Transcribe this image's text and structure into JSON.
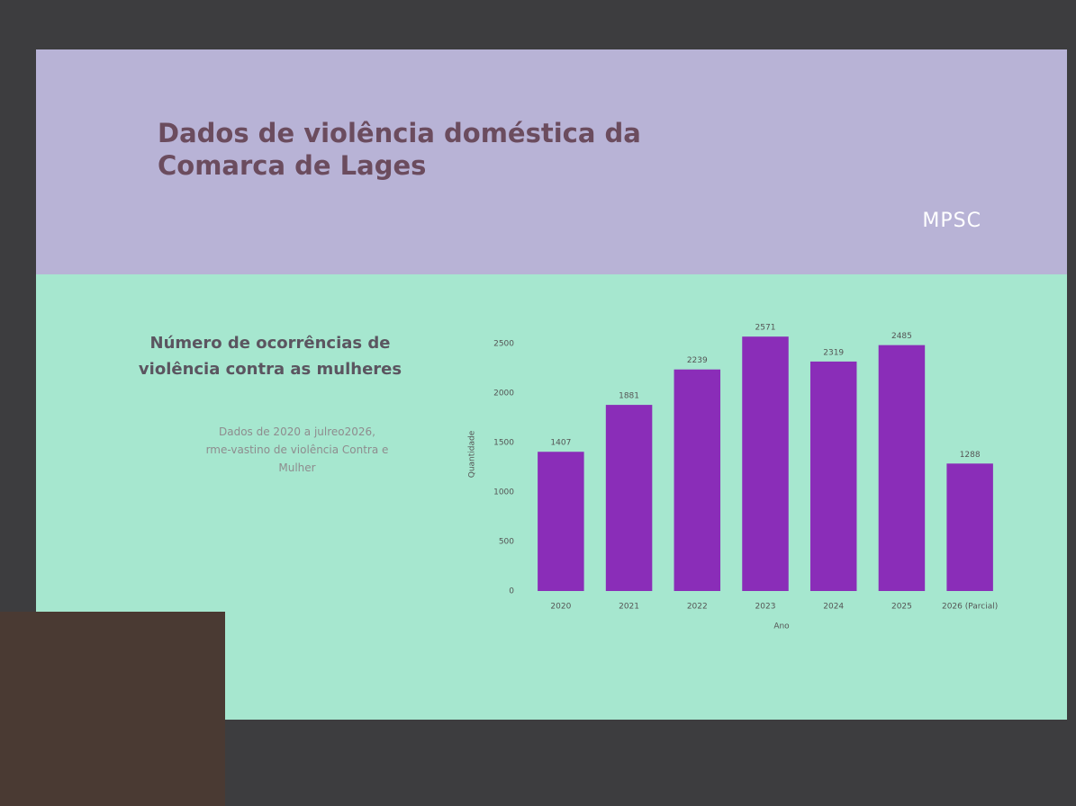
{
  "slide": {
    "title": "Dados de violência doméstica da Comarca de Lages",
    "logo": "MPSC",
    "heading": "Número de ocorrências de violência contra as mulheres",
    "note_lines": [
      "Dados de 2020 a julreo2026,",
      "rme-vastino de violência Contra e",
      "Mulher"
    ]
  },
  "chart_data": {
    "type": "bar",
    "categories": [
      "2020",
      "2021",
      "2022",
      "2023",
      "2024",
      "2025",
      "2026 (Parcial)"
    ],
    "values": [
      1407,
      1881,
      2239,
      2571,
      2319,
      2485,
      1288
    ],
    "color": "#8a2db8",
    "x_label": "Ano",
    "y_label": "Quantidade",
    "ylim": [
      0,
      2500
    ],
    "yticks": [
      0,
      500,
      1000,
      1500,
      2000,
      2500
    ],
    "grid": false
  }
}
